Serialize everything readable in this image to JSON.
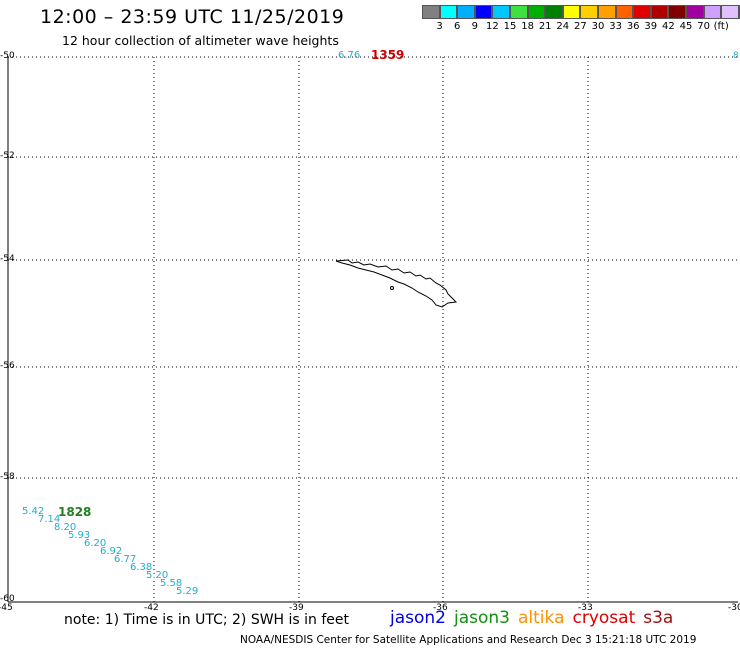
{
  "header": {
    "title": "12:00 – 23:59 UTC 11/25/2019",
    "subtitle": "12 hour collection of altimeter wave heights"
  },
  "colorbar": {
    "colors": [
      "#808080",
      "#00ffff",
      "#00b0ff",
      "#0000ff",
      "#00c8ff",
      "#40e040",
      "#00b000",
      "#008000",
      "#ffff00",
      "#ffd000",
      "#ffa000",
      "#ff6000",
      "#e00000",
      "#b00000",
      "#800000",
      "#a000a0",
      "#d0a0ff",
      "#e0c0ff",
      "#000000"
    ],
    "labels": [
      "3",
      "6",
      "9",
      "12",
      "15",
      "18",
      "21",
      "24",
      "27",
      "30",
      "33",
      "36",
      "39",
      "42",
      "45",
      "70",
      "(ft)"
    ]
  },
  "axes": {
    "lat_labels": [
      "-50",
      "-52",
      "-54",
      "-56",
      "-58",
      "-60"
    ],
    "lon_labels": [
      "-45",
      "-42",
      "-39",
      "-36",
      "-33",
      "-30"
    ],
    "right_edge_label": "8"
  },
  "map": {
    "track_values": [
      "5.42",
      "7.14",
      "8.20",
      "5.93",
      "6.20",
      "6.92",
      "6.77",
      "6.38",
      "5.20",
      "5.58",
      "5.29"
    ],
    "track_color": "#1ab0d0",
    "track_tag": "1828",
    "track_tag_color": "#208020",
    "top_value": "6.76",
    "top_value_color": "#1ab0d0",
    "top_tag": "1359",
    "top_tag_color": "#d00000"
  },
  "footer": {
    "note": "note:  1) Time is in UTC;  2) SWH is in feet",
    "satellites": [
      {
        "name": "jason2",
        "color": "#0000e0"
      },
      {
        "name": "jason3",
        "color": "#109010"
      },
      {
        "name": "altika",
        "color": "#ff9000"
      },
      {
        "name": "cryosat",
        "color": "#e00000"
      },
      {
        "name": "s3a",
        "color": "#a01010"
      }
    ],
    "credit": "NOAA/NESDIS Center for Satellite Applications and Research     Dec  3 15:21:18 UTC 2019"
  }
}
